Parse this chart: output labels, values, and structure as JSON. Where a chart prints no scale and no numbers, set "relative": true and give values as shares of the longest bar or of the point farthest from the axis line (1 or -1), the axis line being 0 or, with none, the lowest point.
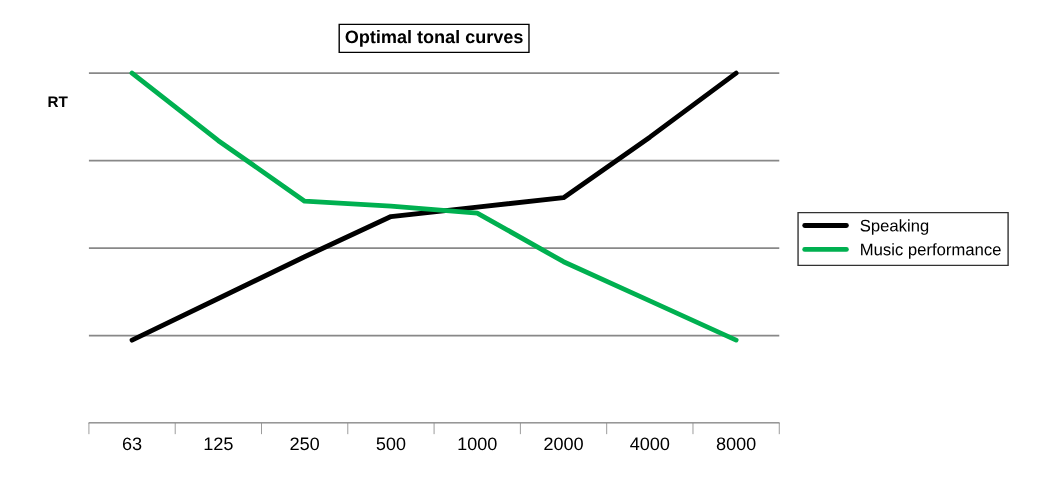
{
  "chart_data": {
    "type": "line",
    "title": "Optimal tonal curves",
    "ylabel": "RT",
    "categories": [
      "63",
      "125",
      "250",
      "500",
      "1000",
      "2000",
      "4000",
      "8000"
    ],
    "relative": true,
    "grid": "y",
    "legend": "right",
    "marker": "none",
    "line_style": "solid",
    "series": [
      {
        "name": "Speaking",
        "color": "#000000",
        "values": [
          0.237,
          0.356,
          0.475,
          0.59,
          0.617,
          0.644,
          0.817,
          1.0
        ]
      },
      {
        "name": "Music performance",
        "color": "#00b050",
        "values": [
          1.0,
          0.807,
          0.634,
          0.62,
          0.6,
          0.461,
          0.349,
          0.237
        ]
      }
    ]
  }
}
